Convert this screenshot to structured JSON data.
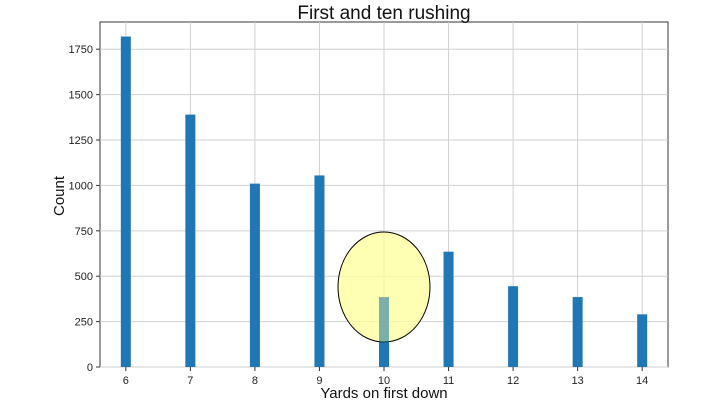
{
  "chart_data": {
    "type": "bar",
    "title": "First and ten rushing",
    "xlabel": "Yards on first down",
    "ylabel": "Count",
    "categories": [
      "6",
      "7",
      "8",
      "9",
      "10",
      "11",
      "12",
      "13",
      "14"
    ],
    "values": [
      1820,
      1390,
      1010,
      1055,
      385,
      635,
      445,
      385,
      290
    ],
    "xlim": [
      5.6,
      14.4
    ],
    "ylim": [
      0,
      1900
    ],
    "yticks": [
      0,
      250,
      500,
      750,
      1000,
      1250,
      1500,
      1750
    ],
    "grid": true,
    "highlight": {
      "category": "10",
      "shape": "ellipse",
      "fill": "#ffff99",
      "stroke": "#000000"
    },
    "bar_color": "#1f77b4"
  }
}
